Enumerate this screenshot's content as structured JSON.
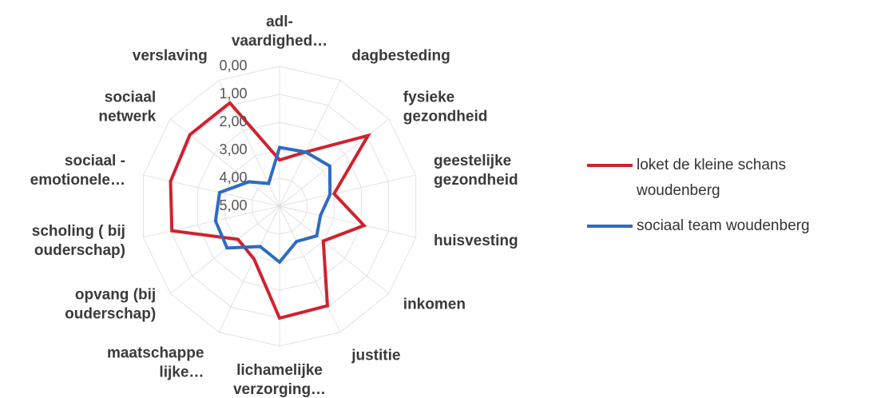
{
  "chart_data": {
    "type": "radar",
    "categories": [
      "adl-\nvaardighed…",
      "dagbesteding",
      "fysieke\ngezondheid",
      "geestelijke\ngezondheid",
      "huisvesting",
      "inkomen",
      "justitie",
      "lichamelijke\nverzorging…",
      "maatschappe\nlijke…",
      "opvang (bij\nouderschap)",
      "scholing ( bij\nouderschap)",
      "sociaal -\nemotionele…",
      "sociaal\nnetwerk",
      "verslaving"
    ],
    "series": [
      {
        "name": "loket de kleine schans\nwoudenberg",
        "color": "#d0222e",
        "values": [
          3.35,
          2.85,
          0.95,
          3.0,
          1.9,
          3.0,
          1.05,
          1.0,
          2.9,
          3.1,
          1.05,
          1.0,
          0.9,
          0.9
        ]
      },
      {
        "name": "sociaal team woudenberg",
        "color": "#2e6bc4",
        "values": [
          2.9,
          2.85,
          2.7,
          3.15,
          3.5,
          3.3,
          3.6,
          3.0,
          3.4,
          2.6,
          2.65,
          2.8,
          3.6,
          4.1
        ]
      }
    ],
    "ylim": [
      0,
      5
    ],
    "reversed": true,
    "yticks": [
      {
        "value": 0,
        "label": "0,00"
      },
      {
        "value": 1,
        "label": "1,00"
      },
      {
        "value": 2,
        "label": "2,00"
      },
      {
        "value": 3,
        "label": "3,00"
      },
      {
        "value": 4,
        "label": "4,00"
      },
      {
        "value": 5,
        "label": "5,00"
      }
    ],
    "grid": true,
    "legend": "right"
  }
}
